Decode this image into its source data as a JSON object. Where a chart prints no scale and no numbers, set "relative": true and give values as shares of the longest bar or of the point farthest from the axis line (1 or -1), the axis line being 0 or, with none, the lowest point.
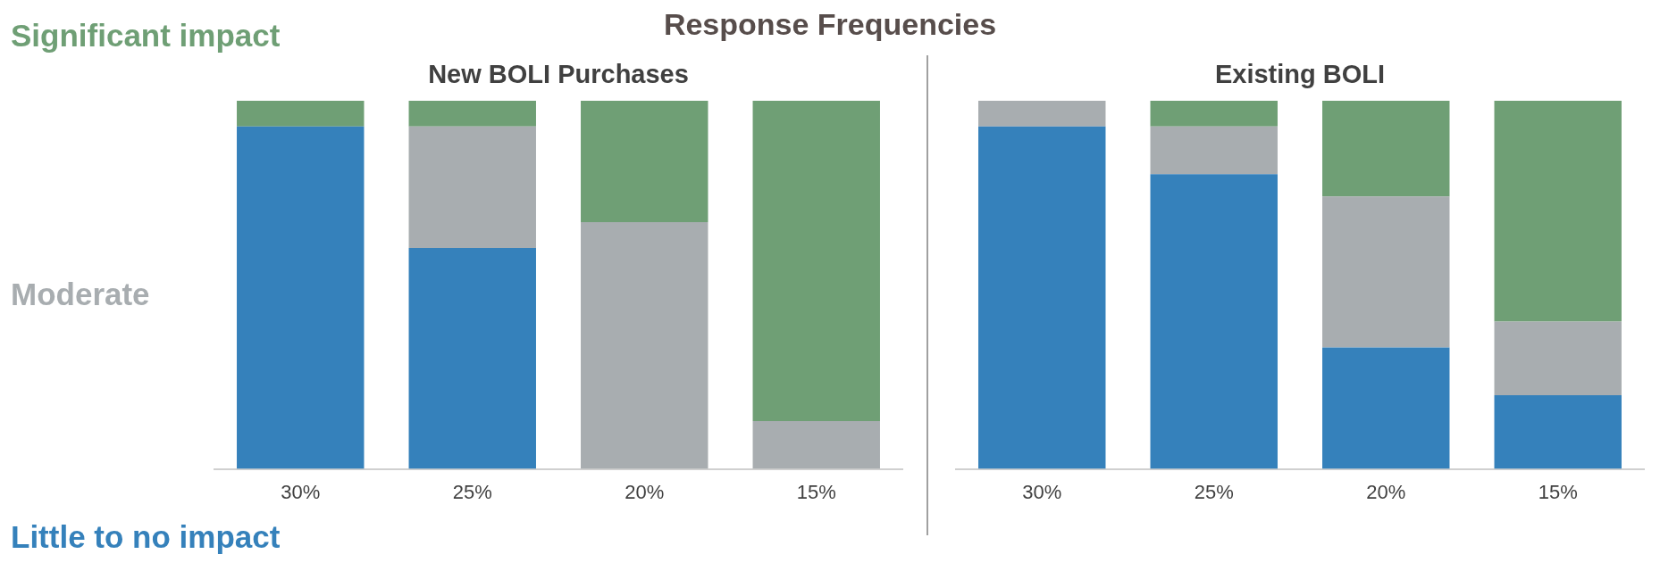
{
  "chart_data": [
    {
      "type": "bar",
      "title": "New BOLI Purchases",
      "annotations": [
        "Response Frequencies"
      ],
      "categories": [
        "30%",
        "25%",
        "20%",
        "15%"
      ],
      "stacked": true,
      "relative": true,
      "grid": false,
      "legend": "left",
      "series": [
        {
          "name": "Little to no impact",
          "color": "#3581bb",
          "values": [
            0.93,
            0.6,
            0,
            0
          ]
        },
        {
          "name": "Moderate",
          "color": "#a8adb0",
          "values": [
            0,
            0.33,
            0.67,
            0.13
          ]
        },
        {
          "name": "Significant impact",
          "color": "#6f9f75",
          "values": [
            0.07,
            0.07,
            0.33,
            0.87
          ]
        }
      ]
    },
    {
      "type": "bar",
      "title": "Existing BOLI",
      "categories": [
        "30%",
        "25%",
        "20%",
        "15%"
      ],
      "stacked": true,
      "relative": true,
      "grid": false,
      "series": [
        {
          "color": "#3581bb",
          "values": [
            0.93,
            0.8,
            0.33,
            0.2
          ]
        },
        {
          "color": "#a8adb0",
          "values": [
            0.07,
            0.13,
            0.41,
            0.2
          ]
        },
        {
          "color": "#6f9f75",
          "values": [
            0,
            0.07,
            0.26,
            0.6
          ]
        }
      ]
    }
  ]
}
